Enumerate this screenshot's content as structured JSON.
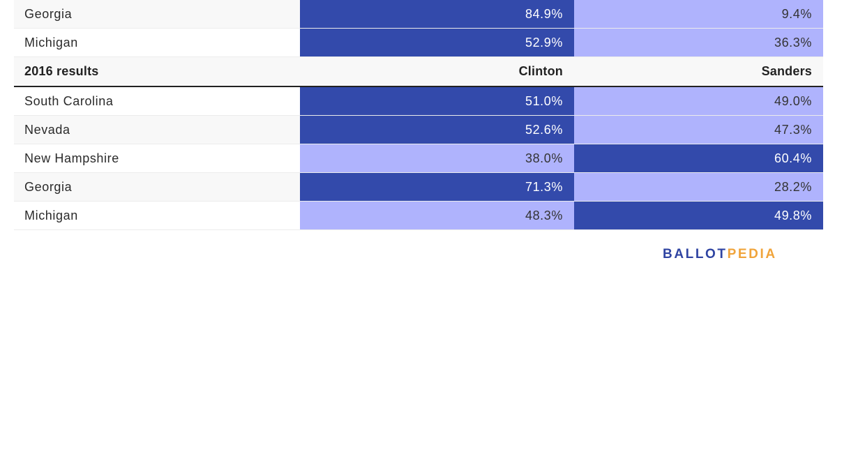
{
  "chart_data": {
    "type": "table",
    "colors": {
      "dark": "#334aab",
      "light": "#afb3fd"
    },
    "top_rows": [
      {
        "state": "Georgia",
        "v1": "84.9%",
        "v2": "9.4%",
        "s1": "dark",
        "s2": "light"
      },
      {
        "state": "Michigan",
        "v1": "52.9%",
        "v2": "36.3%",
        "s1": "dark",
        "s2": "light"
      }
    ],
    "section_2016": {
      "header": {
        "label": "2016 results",
        "col1": "Clinton",
        "col2": "Sanders"
      },
      "rows": [
        {
          "state": "South Carolina",
          "v1": "51.0%",
          "v2": "49.0%",
          "s1": "dark",
          "s2": "light"
        },
        {
          "state": "Nevada",
          "v1": "52.6%",
          "v2": "47.3%",
          "s1": "dark",
          "s2": "light"
        },
        {
          "state": "New Hampshire",
          "v1": "38.0%",
          "v2": "60.4%",
          "s1": "light",
          "s2": "dark"
        },
        {
          "state": "Georgia",
          "v1": "71.3%",
          "v2": "28.2%",
          "s1": "dark",
          "s2": "light"
        },
        {
          "state": "Michigan",
          "v1": "48.3%",
          "v2": "49.8%",
          "s1": "light",
          "s2": "dark"
        }
      ]
    }
  },
  "logo": {
    "part1": "BALLOT",
    "part2": "PEDIA"
  }
}
